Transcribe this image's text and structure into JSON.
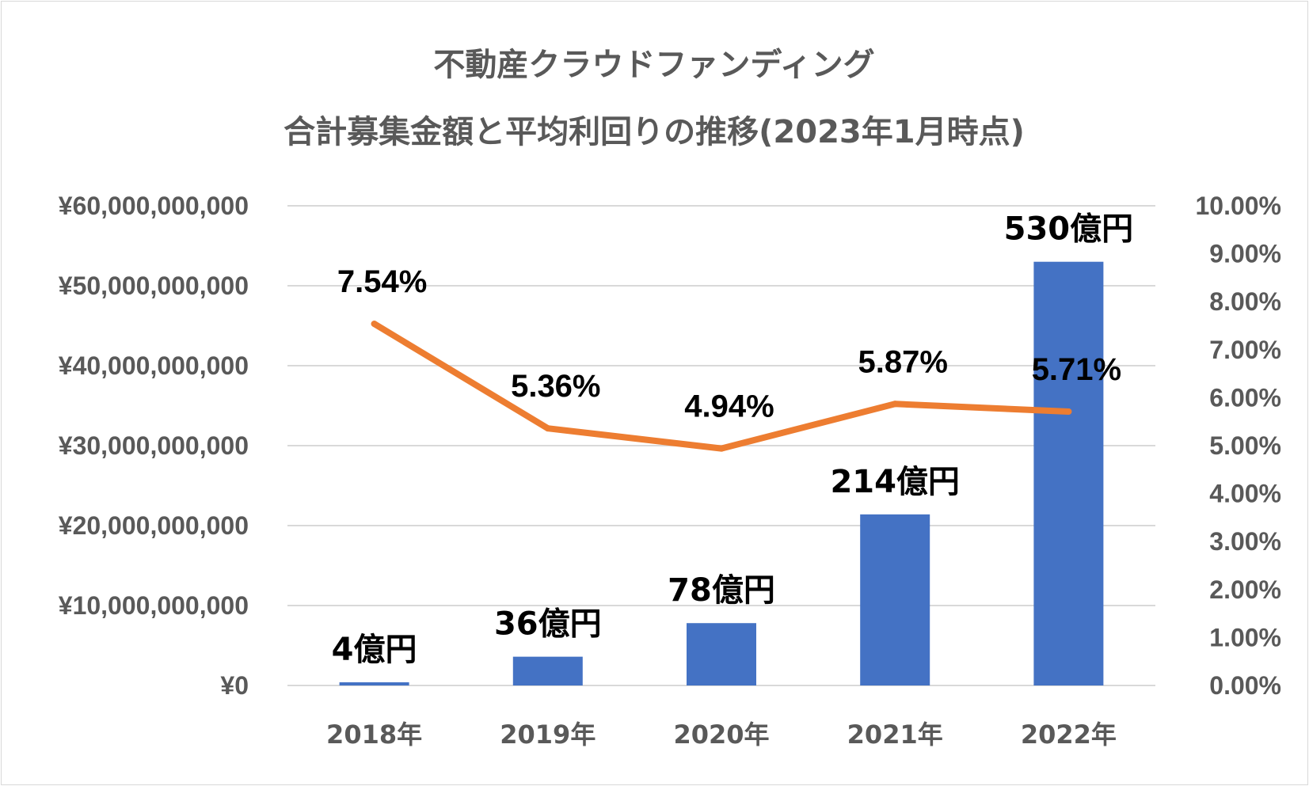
{
  "chart_data": {
    "type": "bar",
    "title_lines": [
      "不動産クラウドファンディング",
      "合計募集金額と平均利回りの推移(2023年1月時点)"
    ],
    "categories": [
      "2018年",
      "2019年",
      "2020年",
      "2021年",
      "2022年"
    ],
    "series": [
      {
        "type": "bar",
        "axis": "left",
        "values": [
          400000000,
          3600000000,
          7800000000,
          21400000000,
          53000000000
        ],
        "labels": [
          "4億円",
          "36億円",
          "78億円",
          "214億円",
          "530億円"
        ],
        "color": "#4472c4"
      },
      {
        "type": "line",
        "axis": "right",
        "values": [
          7.54,
          5.36,
          4.94,
          5.87,
          5.71
        ],
        "labels": [
          "7.54%",
          "5.36%",
          "4.94%",
          "5.87%",
          "5.71%"
        ],
        "color": "#ed7d31"
      }
    ],
    "y_left": {
      "min": 0,
      "max": 60000000000,
      "step": 10000000000,
      "tick_labels": [
        "¥0",
        "¥10,000,000,000",
        "¥20,000,000,000",
        "¥30,000,000,000",
        "¥40,000,000,000",
        "¥50,000,000,000",
        "¥60,000,000,000"
      ]
    },
    "y_right": {
      "min": 0,
      "max": 10,
      "step": 1,
      "tick_labels": [
        "0.00%",
        "1.00%",
        "2.00%",
        "3.00%",
        "4.00%",
        "5.00%",
        "6.00%",
        "7.00%",
        "8.00%",
        "9.00%",
        "10.00%"
      ]
    },
    "grid": true,
    "legend": "none"
  }
}
